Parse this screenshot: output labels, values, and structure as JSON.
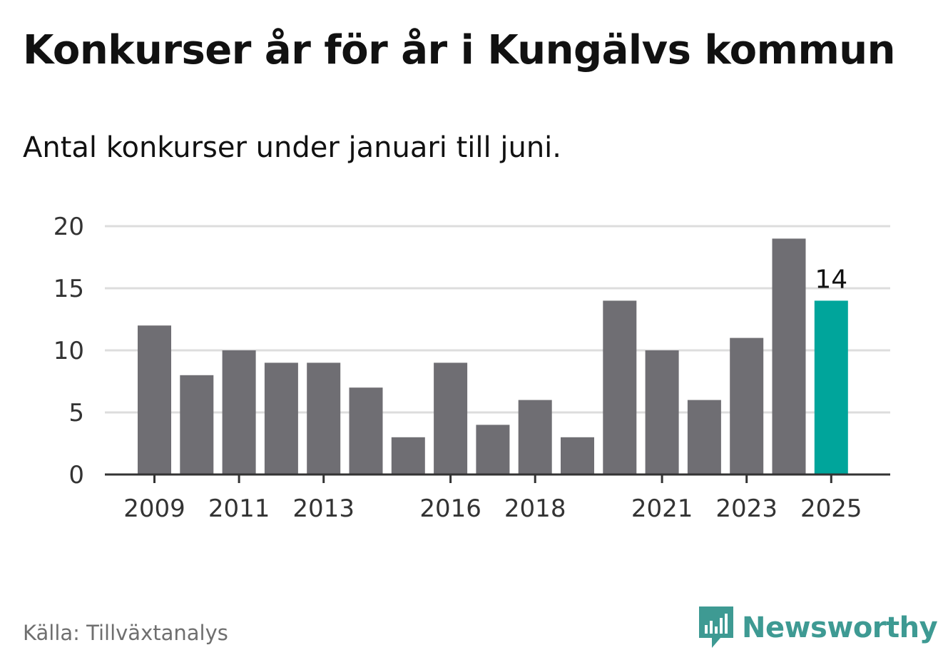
{
  "header": {
    "title": "Konkurser år för år i Kungälvs kommun",
    "subtitle": "Antal konkurser under januari till juni."
  },
  "footer": {
    "source": "Källa: Tillväxtanalys",
    "brand_name": "Newsworthy",
    "brand_icon": "newsworthy-logo-icon"
  },
  "colors": {
    "bar": "#6f6e73",
    "highlight": "#00a59b",
    "grid": "#dddddd",
    "axis": "#333333",
    "brand": "#3e9a93"
  },
  "chart_data": {
    "type": "bar",
    "categories": [
      "2009",
      "2010",
      "2011",
      "2012",
      "2013",
      "2014",
      "2015",
      "2016",
      "2017",
      "2018",
      "2019",
      "2020",
      "2021",
      "2022",
      "2023",
      "2024",
      "2025"
    ],
    "values": [
      12,
      8,
      10,
      9,
      9,
      7,
      3,
      9,
      4,
      6,
      3,
      14,
      10,
      6,
      11,
      19,
      14
    ],
    "x_tick_labels": [
      "2009",
      "2011",
      "2013",
      "2016",
      "2018",
      "2021",
      "2023",
      "2025"
    ],
    "y_ticks": [
      0,
      5,
      10,
      15,
      20
    ],
    "ylim": [
      0,
      20
    ],
    "highlight_category": "2025",
    "data_labels": [
      {
        "category": "2025",
        "text": "14"
      }
    ],
    "grid": true,
    "legend": "none",
    "title": "Konkurser år för år i Kungälvs kommun",
    "subtitle": "Antal konkurser under januari till juni.",
    "xlabel": "",
    "ylabel": ""
  }
}
